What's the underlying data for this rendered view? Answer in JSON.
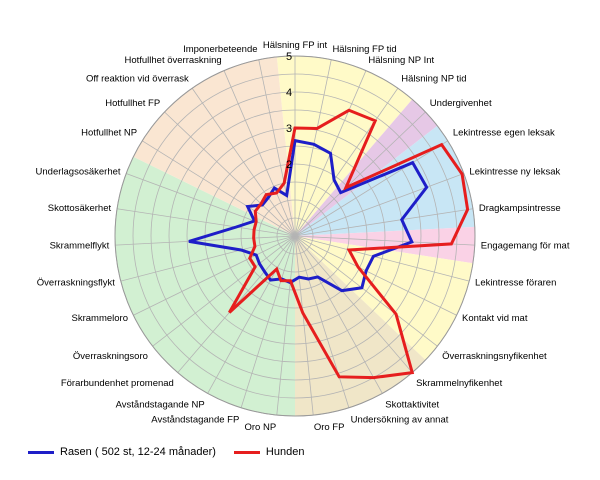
{
  "chart_data": {
    "type": "radar",
    "title": "",
    "rmax": 5,
    "radial_ticks": [
      1,
      2,
      3,
      4,
      5
    ],
    "radial_labels": [
      "2",
      "3",
      "4",
      "5"
    ],
    "categories": [
      "Hälsning FP int",
      "Hälsning FP tid",
      "Hälsning NP Int",
      "Hälsning NP tid",
      "Undergivenhet",
      "Lekintresse egen leksak",
      "Lekintresse ny leksak",
      "Dragkampsintresse",
      "Engagemang för mat",
      "Lekintresse föraren",
      "Kontakt vid mat",
      "Överraskningsnyfikenhet",
      "Skrammelnyfikenhet",
      "Skottaktivitet",
      "Undersökning av annat",
      "Oro FP",
      "Oro NP",
      "Avståndstagande FP",
      "Avståndstagande NP",
      "Förarbundenhet promenad",
      "Överraskningsoro",
      "Skrammeloro",
      "Överraskningsflykt",
      "Skrammelflykt",
      "Skottosäkerhet",
      "Underlagsosäkerhet",
      "Hotfullhet NP",
      "Hotfullhet FP",
      "Off reaktion vid överrask",
      "Hotfullhet överraskning",
      "Imponerbeteende"
    ],
    "background_sectors": [
      {
        "from": "Hälsning FP int",
        "to": "Hälsning NP tid",
        "color": "#fffac8"
      },
      {
        "from": "Undergivenhet",
        "to": "Undergivenhet",
        "color": "#e6c8e6"
      },
      {
        "from": "Lekintresse egen leksak",
        "to": "Dragkampsintresse",
        "color": "#c8e6f5"
      },
      {
        "from": "Engagemang för mat",
        "to": "Engagemang för mat",
        "color": "#fad2e6"
      },
      {
        "from": "Lekintresse föraren",
        "to": "Överraskningsnyfikenhet",
        "color": "#fffac8"
      },
      {
        "from": "Skrammelnyfikenhet",
        "to": "Oro FP",
        "color": "#f0e6c8"
      },
      {
        "from": "Oro NP",
        "to": "Underlagsosäkerhet",
        "color": "#d2f0d2"
      },
      {
        "from": "Hotfullhet NP",
        "to": "Imponerbeteende",
        "color": "#fae6d2"
      }
    ],
    "series": [
      {
        "name": "Rasen ( 502 st, 12-24 månader)",
        "color": "#1e1ec8",
        "values": [
          2.65,
          2.6,
          2.5,
          1.9,
          1.75,
          3.85,
          3.9,
          3.0,
          3.25,
          2.25,
          2.2,
          2.35,
          2.0,
          1.3,
          1.25,
          1.15,
          1.3,
          1.25,
          1.4,
          1.3,
          1.25,
          1.2,
          1.55,
          2.95,
          1.65,
          1.2,
          1.55,
          1.25,
          1.3,
          1.45,
          1.15
        ]
      },
      {
        "name": "Hunden",
        "color": "#e61e1e",
        "values": [
          3.0,
          3.05,
          3.8,
          3.9,
          1.95,
          4.8,
          4.95,
          4.85,
          4.35,
          1.55,
          1.95,
          3.55,
          5.0,
          4.5,
          4.1,
          2.15,
          1.25,
          1.3,
          1.05,
          2.8,
          1.4,
          1.4,
          1.15,
          1.15,
          1.15,
          1.15,
          1.3,
          1.3,
          1.4,
          1.3,
          1.5
        ]
      }
    ],
    "legend_position": "bottom-left"
  }
}
